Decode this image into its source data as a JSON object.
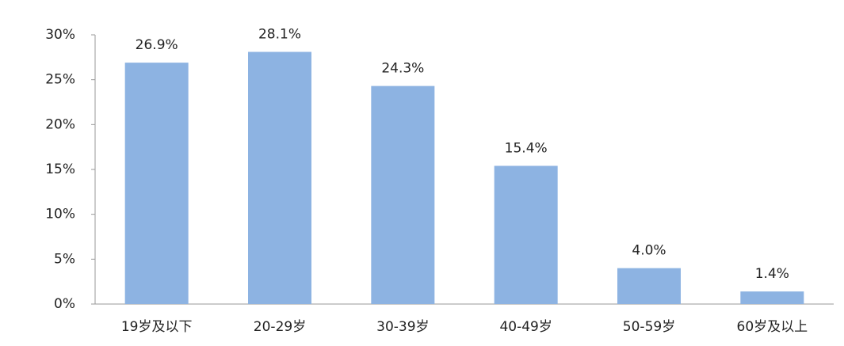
{
  "chart_data": {
    "type": "bar",
    "categories": [
      "19岁及以下",
      "20-29岁",
      "30-39岁",
      "40-49岁",
      "50-59岁",
      "60岁及以上"
    ],
    "values": [
      26.9,
      28.1,
      24.3,
      15.4,
      4.0,
      1.4
    ],
    "value_labels": [
      "26.9%",
      "28.1%",
      "24.3%",
      "15.4%",
      "4.0%",
      "1.4%"
    ],
    "color": "#8db3e2",
    "ylim": [
      0,
      30
    ],
    "yticks": [
      {
        "value": 0,
        "label": "0%"
      },
      {
        "value": 5,
        "label": "5%"
      },
      {
        "value": 10,
        "label": "10%"
      },
      {
        "value": 15,
        "label": "15%"
      },
      {
        "value": 20,
        "label": "20%"
      },
      {
        "value": 25,
        "label": "25%"
      },
      {
        "value": 30,
        "label": "30%"
      }
    ],
    "grid": false
  }
}
